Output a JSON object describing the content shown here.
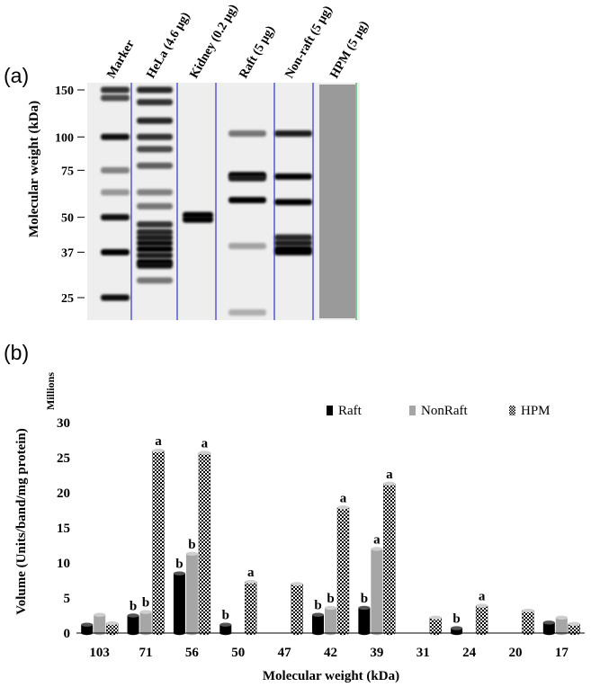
{
  "panel_a": {
    "label": "(a)",
    "ylabel": "Molecular weight (kDa)",
    "lanes": [
      "Marker",
      "HeLa (4.6 μg)",
      "Kidney (0.2 μg)",
      "Raft (5 μg)",
      "Non-raft (5 μg)",
      "HPM (5 μg)"
    ],
    "mw_ticks": [
      {
        "label": "150",
        "kda": 150
      },
      {
        "label": "100",
        "kda": 100
      },
      {
        "label": "75",
        "kda": 75
      },
      {
        "label": "50",
        "kda": 50
      },
      {
        "label": "37",
        "kda": 37
      },
      {
        "label": "25",
        "kda": 25
      }
    ],
    "bands": [
      {
        "lane": 0,
        "kda": 150,
        "intensity": 0.8
      },
      {
        "lane": 0,
        "kda": 140,
        "intensity": 0.7
      },
      {
        "lane": 0,
        "kda": 100,
        "intensity": 0.95
      },
      {
        "lane": 0,
        "kda": 75,
        "intensity": 0.45
      },
      {
        "lane": 0,
        "kda": 62,
        "intensity": 0.35
      },
      {
        "lane": 0,
        "kda": 50,
        "intensity": 0.95
      },
      {
        "lane": 0,
        "kda": 37,
        "intensity": 1.0
      },
      {
        "lane": 0,
        "kda": 25,
        "intensity": 0.95
      },
      {
        "lane": 1,
        "kda": 150,
        "intensity": 0.85
      },
      {
        "lane": 1,
        "kda": 135,
        "intensity": 0.8
      },
      {
        "lane": 1,
        "kda": 115,
        "intensity": 0.85
      },
      {
        "lane": 1,
        "kda": 100,
        "intensity": 0.8
      },
      {
        "lane": 1,
        "kda": 90,
        "intensity": 0.7
      },
      {
        "lane": 1,
        "kda": 78,
        "intensity": 0.6
      },
      {
        "lane": 1,
        "kda": 62,
        "intensity": 0.45
      },
      {
        "lane": 1,
        "kda": 55,
        "intensity": 0.5
      },
      {
        "lane": 1,
        "kda": 47,
        "intensity": 0.8
      },
      {
        "lane": 1,
        "kda": 44,
        "intensity": 0.85
      },
      {
        "lane": 1,
        "kda": 42,
        "intensity": 0.9
      },
      {
        "lane": 1,
        "kda": 40,
        "intensity": 0.95
      },
      {
        "lane": 1,
        "kda": 38,
        "intensity": 1.0
      },
      {
        "lane": 1,
        "kda": 36,
        "intensity": 0.9
      },
      {
        "lane": 1,
        "kda": 34,
        "intensity": 1.0
      },
      {
        "lane": 1,
        "kda": 33,
        "intensity": 0.95
      },
      {
        "lane": 1,
        "kda": 29,
        "intensity": 0.5
      },
      {
        "lane": 2,
        "kda": 51,
        "intensity": 1.0
      },
      {
        "lane": 2,
        "kda": 49,
        "intensity": 1.0
      },
      {
        "lane": 3,
        "kda": 103,
        "intensity": 0.5
      },
      {
        "lane": 3,
        "kda": 72,
        "intensity": 1.0
      },
      {
        "lane": 3,
        "kda": 70,
        "intensity": 0.9
      },
      {
        "lane": 3,
        "kda": 58,
        "intensity": 1.0
      },
      {
        "lane": 3,
        "kda": 39,
        "intensity": 0.3
      },
      {
        "lane": 3,
        "kda": 22,
        "intensity": 0.25
      },
      {
        "lane": 4,
        "kda": 103,
        "intensity": 0.9
      },
      {
        "lane": 4,
        "kda": 71,
        "intensity": 1.0
      },
      {
        "lane": 4,
        "kda": 57,
        "intensity": 1.0
      },
      {
        "lane": 4,
        "kda": 42,
        "intensity": 0.85
      },
      {
        "lane": 4,
        "kda": 40,
        "intensity": 0.9
      },
      {
        "lane": 4,
        "kda": 38,
        "intensity": 1.0
      },
      {
        "lane": 4,
        "kda": 37,
        "intensity": 1.0
      }
    ]
  },
  "chart_data": {
    "type": "bar",
    "panel_label": "(b)",
    "title": "",
    "ylabel": "Volume (Units/band/mg protein)",
    "yunit": "Millions",
    "xlabel": "Molecular weight (kDa)",
    "categories": [
      "103",
      "71",
      "56",
      "50",
      "47",
      "42",
      "39",
      "31",
      "24",
      "20",
      "17"
    ],
    "ylim": [
      0,
      30
    ],
    "yticks": [
      0,
      5,
      10,
      15,
      20,
      25,
      30
    ],
    "legend_position": "top-right",
    "series": [
      {
        "name": "Raft",
        "color": "#000000",
        "pattern": "solid",
        "values": [
          1.2,
          2.5,
          8.5,
          1.2,
          0,
          2.6,
          3.6,
          0,
          0.7,
          0,
          1.5
        ],
        "labels": [
          "",
          "b",
          "b",
          "b",
          "",
          "b",
          "b",
          "",
          "b",
          "",
          ""
        ]
      },
      {
        "name": "NonRaft",
        "color": "#a6a6a6",
        "pattern": "solid",
        "values": [
          2.6,
          3.0,
          11.3,
          0,
          0,
          3.6,
          12.0,
          0,
          0,
          0,
          2.2
        ],
        "labels": [
          "",
          "b",
          "b",
          "",
          "",
          "b",
          "a",
          "",
          "",
          "",
          ""
        ]
      },
      {
        "name": "HPM",
        "color": "#000000",
        "pattern": "checker",
        "values": [
          1.4,
          26.0,
          25.7,
          7.3,
          7.0,
          17.9,
          21.3,
          2.2,
          3.9,
          3.2,
          1.3
        ],
        "labels": [
          "",
          "a",
          "a",
          "a",
          "",
          "a",
          "a",
          "",
          "a",
          "",
          ""
        ]
      }
    ]
  }
}
